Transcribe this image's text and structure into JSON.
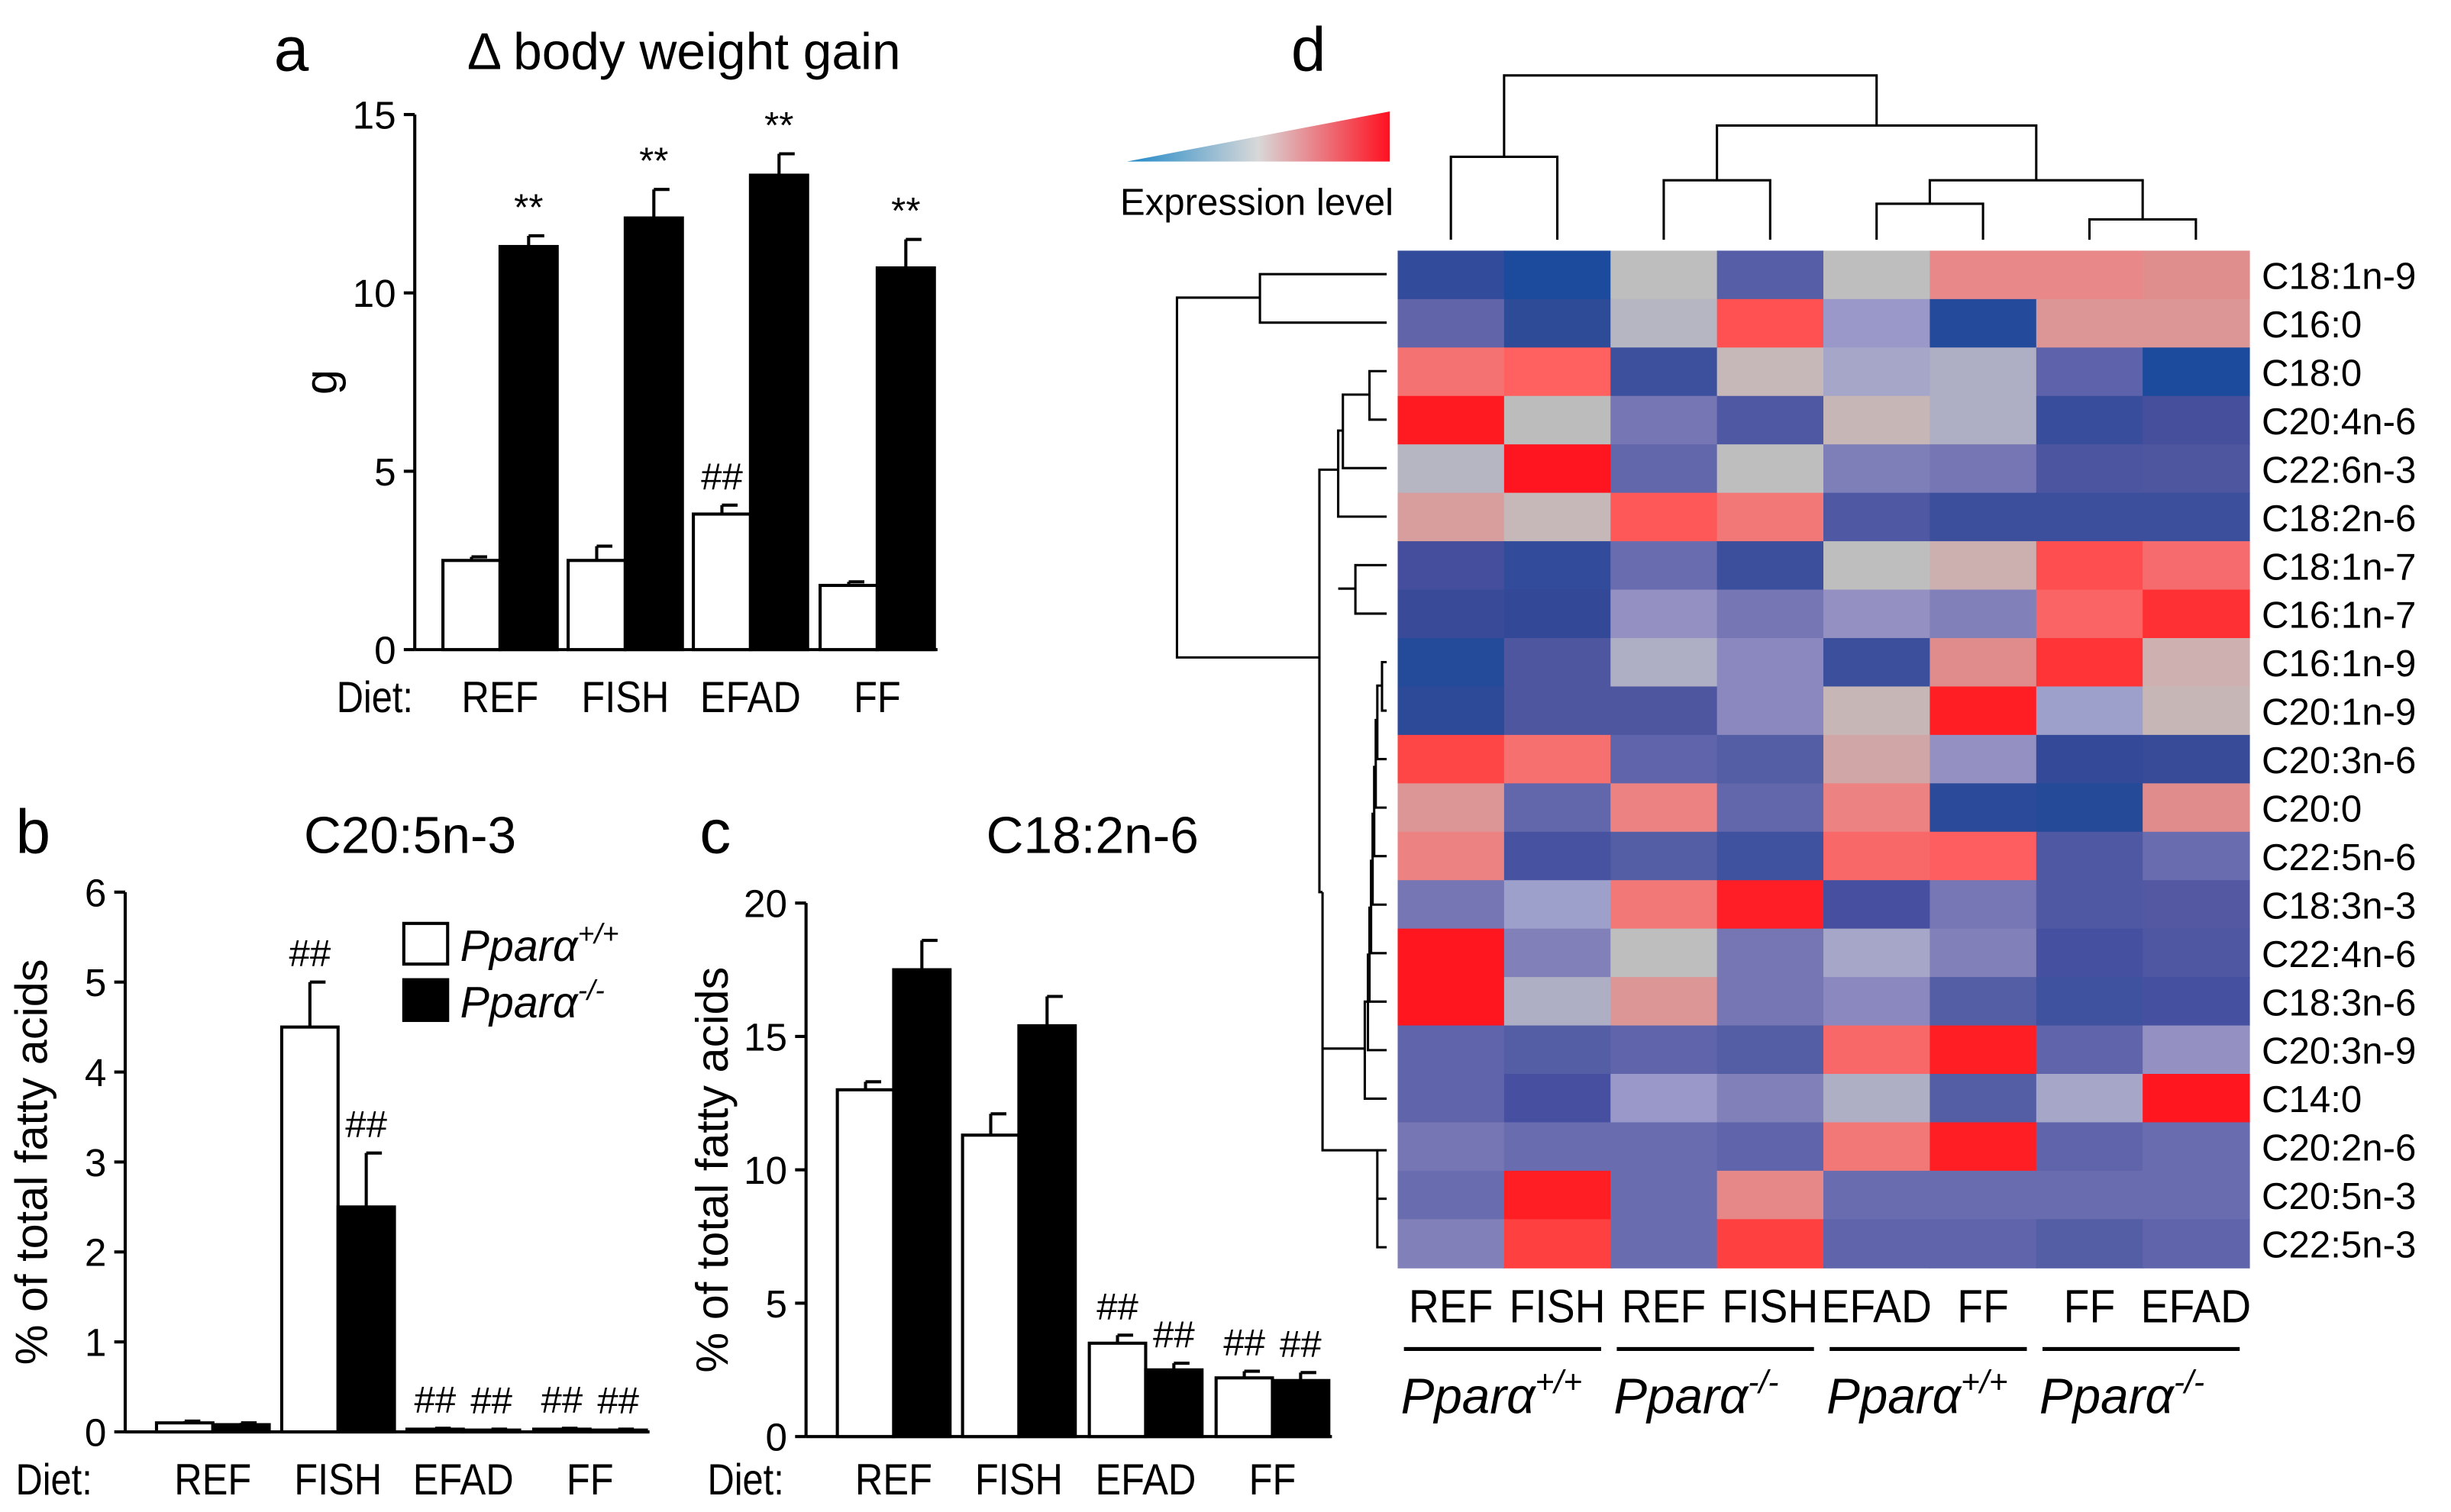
{
  "legend": {
    "wt": "Pparα",
    "wt_sup": "+/+",
    "ko": "Pparα",
    "ko_sup": "-/-"
  },
  "diet_label": "Diet:",
  "chart_data": [
    {
      "panel": "a",
      "type": "bar",
      "title": "Δ body weight gain",
      "ylabel": "g",
      "ylim": [
        0,
        15
      ],
      "yticks": [
        0,
        5,
        10,
        15
      ],
      "categories": [
        "REF",
        "FISH",
        "EFAD",
        "FF"
      ],
      "series": [
        {
          "name": "Pparα+/+",
          "fill": "#ffffff",
          "values": [
            2.5,
            2.5,
            3.8,
            1.8
          ],
          "errors": [
            0.1,
            0.4,
            0.25,
            0.1
          ],
          "annotations": [
            "",
            "",
            "##",
            ""
          ]
        },
        {
          "name": "Pparα-/-",
          "fill": "#000000",
          "values": [
            11.3,
            12.1,
            13.3,
            10.7
          ],
          "errors": [
            0.3,
            0.8,
            0.6,
            0.8
          ],
          "annotations": [
            "**",
            "**",
            "**",
            "**"
          ]
        }
      ]
    },
    {
      "panel": "b",
      "type": "bar",
      "title": "C20:5n-3",
      "ylabel": "% of total fatty acids",
      "ylim": [
        0,
        6
      ],
      "yticks": [
        0,
        1,
        2,
        3,
        4,
        5,
        6
      ],
      "categories": [
        "REF",
        "FISH",
        "EFAD",
        "FF"
      ],
      "legend_position": "top-right",
      "series": [
        {
          "name": "Pparα+/+",
          "fill": "#ffffff",
          "values": [
            0.1,
            4.5,
            0.03,
            0.03
          ],
          "errors": [
            0.02,
            0.5,
            0.01,
            0.01
          ],
          "annotations": [
            "",
            "##",
            "##",
            "##"
          ]
        },
        {
          "name": "Pparα-/-",
          "fill": "#000000",
          "values": [
            0.08,
            2.5,
            0.02,
            0.02
          ],
          "errors": [
            0.02,
            0.6,
            0.01,
            0.01
          ],
          "annotations": [
            "",
            "##",
            "##",
            "##"
          ]
        }
      ]
    },
    {
      "panel": "c",
      "type": "bar",
      "title": "C18:2n-6",
      "ylabel": "% of total fatty acids",
      "ylim": [
        0,
        20
      ],
      "yticks": [
        0,
        5,
        10,
        15,
        20
      ],
      "categories": [
        "REF",
        "FISH",
        "EFAD",
        "FF"
      ],
      "series": [
        {
          "name": "Pparα+/+",
          "fill": "#ffffff",
          "values": [
            13.0,
            11.3,
            3.5,
            2.2
          ],
          "errors": [
            0.3,
            0.8,
            0.3,
            0.25
          ],
          "annotations": [
            "",
            "",
            "##",
            "##"
          ]
        },
        {
          "name": "Pparα-/-",
          "fill": "#000000",
          "values": [
            17.5,
            15.4,
            2.5,
            2.1
          ],
          "errors": [
            1.1,
            1.1,
            0.25,
            0.3
          ],
          "annotations": [
            "",
            "",
            "##",
            "##"
          ]
        }
      ]
    },
    {
      "panel": "d",
      "type": "heatmap",
      "color_scale_label": "Expression level",
      "color_scale": [
        "#1e88c8",
        "#d0d0d0",
        "#ff1020"
      ],
      "columns": [
        "REF",
        "FISH",
        "REF",
        "FISH",
        "EFAD",
        "FF",
        "FF",
        "EFAD"
      ],
      "column_groups": [
        {
          "label": "Pparα",
          "sup": "+/+"
        },
        {
          "label": "Pparα",
          "sup": "-/-"
        },
        {
          "label": "Pparα",
          "sup": "+/+"
        },
        {
          "label": "Pparα",
          "sup": "-/-"
        }
      ],
      "rows": [
        "C18:1n-9",
        "C16:0",
        "C18:0",
        "C20:4n-6",
        "C22:6n-3",
        "C18:2n-6",
        "C18:1n-7",
        "C16:1n-7",
        "C16:1n-9",
        "C20:1n-9",
        "C20:3n-6",
        "C20:0",
        "C22:5n-6",
        "C18:3n-3",
        "C22:4n-6",
        "C18:3n-6",
        "C20:3n-9",
        "C14:0",
        "C20:2n-6",
        "C20:5n-3",
        "C22:5n-3"
      ],
      "cell_colors": [
        [
          "#324b9a",
          "#1c4a9c",
          "#bebebe",
          "#555ea6",
          "#bebebe",
          "#e98888",
          "#e98888",
          "#e08d8d"
        ],
        [
          "#6164a8",
          "#2e4b98",
          "#b6b6c2",
          "#ff5052",
          "#9a98c8",
          "#244a9b",
          "#dc9696",
          "#dc9696"
        ],
        [
          "#f57272",
          "#ff6060",
          "#3c509e",
          "#c6b8b8",
          "#a6a6c8",
          "#aeaec4",
          "#5d62aa",
          "#1c4a9c"
        ],
        [
          "#ff1a22",
          "#bcbcbc",
          "#7676b4",
          "#4f58a2",
          "#c6b6b6",
          "#aeaec4",
          "#384e9c",
          "#454f9c"
        ],
        [
          "#b6b6c2",
          "#ff1520",
          "#6266ab",
          "#bebebe",
          "#7e7eb8",
          "#7676b4",
          "#4c56a0",
          "#4e56a0"
        ],
        [
          "#d89e9e",
          "#c6b8b8",
          "#ff5858",
          "#f27878",
          "#4f58a2",
          "#3b4f9c",
          "#3b4f9c",
          "#3b4f9c"
        ],
        [
          "#454e9c",
          "#324b9a",
          "#6a6cb0",
          "#3b4f9c",
          "#bebebe",
          "#ccb0b0",
          "#ff4e50",
          "#f66c6e"
        ],
        [
          "#394b98",
          "#344898",
          "#9490c2",
          "#7676b4",
          "#9490c2",
          "#8280b8",
          "#fa6464",
          "#ff3034"
        ],
        [
          "#244a9a",
          "#4e56a0",
          "#aeaec4",
          "#8a88be",
          "#3b4f9c",
          "#e08c8c",
          "#ff3436",
          "#ceb0b0"
        ],
        [
          "#2c4a98",
          "#4e56a0",
          "#4e56a0",
          "#8a88be",
          "#c6b6b6",
          "#ff1e24",
          "#9ea0cc",
          "#c6b6b6"
        ],
        [
          "#ff4646",
          "#f67070",
          "#6064aa",
          "#545ea4",
          "#d0a6a6",
          "#9490c2",
          "#344a98",
          "#374b98"
        ],
        [
          "#dc9696",
          "#6266ab",
          "#ec8282",
          "#6266ab",
          "#ec8282",
          "#2c4a9a",
          "#244a98",
          "#e08c8c"
        ],
        [
          "#ec8282",
          "#4752a0",
          "#545ea4",
          "#3f52a0",
          "#f86868",
          "#ff5e60",
          "#4f58a2",
          "#6a6cb0"
        ],
        [
          "#7776b4",
          "#9ea0cc",
          "#f27878",
          "#ff1e26",
          "#4750a0",
          "#7877b6",
          "#4f58a2",
          "#5458a2"
        ],
        [
          "#ff161e",
          "#8280b8",
          "#bebebe",
          "#7676b4",
          "#a6a6c8",
          "#8280b8",
          "#4550a0",
          "#4f56a2"
        ],
        [
          "#ff161e",
          "#aeaec4",
          "#dc9696",
          "#7676b4",
          "#8a88be",
          "#545ea4",
          "#3f52a0",
          "#4550a0"
        ],
        [
          "#6064aa",
          "#545ea4",
          "#6064aa",
          "#545ea4",
          "#f86868",
          "#ff1e24",
          "#6064aa",
          "#9490c2"
        ],
        [
          "#6064aa",
          "#4750a0",
          "#9a98c8",
          "#8280b8",
          "#aeaec4",
          "#545ea4",
          "#a6a6c8",
          "#ff161e"
        ],
        [
          "#7776b4",
          "#6a6cb0",
          "#6a6cb0",
          "#6064aa",
          "#f27878",
          "#ff1e24",
          "#6064aa",
          "#6a6cb0"
        ],
        [
          "#6a6cb0",
          "#ff1e24",
          "#6a6cb0",
          "#e68888",
          "#6a6cb0",
          "#6a6cb0",
          "#6a6cb0",
          "#6a6cb0"
        ],
        [
          "#8280b8",
          "#ff4040",
          "#6a6cb0",
          "#ff4040",
          "#6064aa",
          "#6064aa",
          "#545ea4",
          "#6064aa"
        ]
      ]
    }
  ]
}
